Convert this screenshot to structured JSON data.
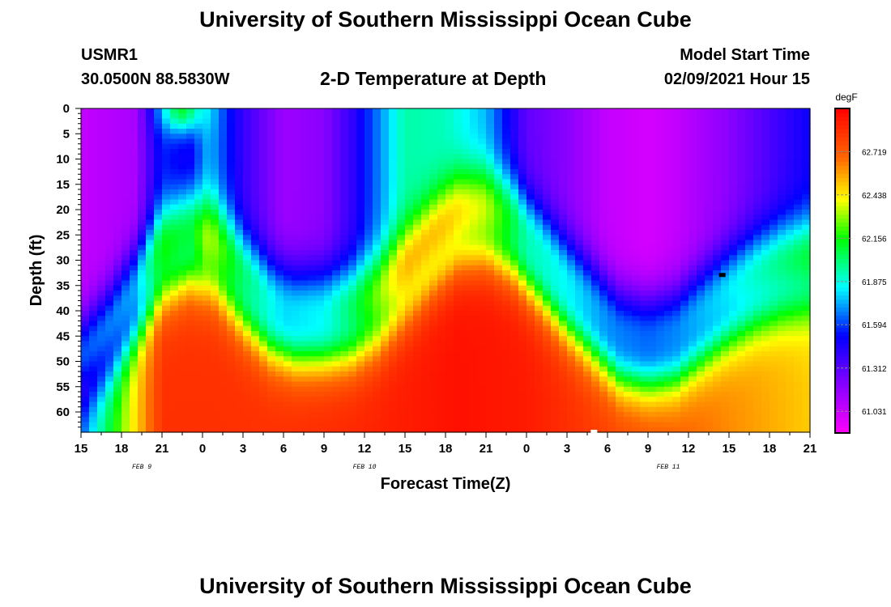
{
  "page": {
    "title_top": "University of Southern Mississippi Ocean Cube",
    "title_bottom": "University of Southern Mississippi Ocean Cube",
    "station_id": "USMR1",
    "coordinates": "30.0500N 88.5830W",
    "subtitle": "2-D Temperature at Depth",
    "model_start_label": "Model Start Time",
    "model_start_value": "02/09/2021 Hour 15"
  },
  "chart_data": {
    "type": "heatmap",
    "title": "2-D Temperature at Depth",
    "xlabel": "Forecast Time(Z)",
    "ylabel": "Depth (ft)",
    "x_ticks": [
      "15",
      "18",
      "21",
      "0",
      "3",
      "6",
      "9",
      "12",
      "15",
      "18",
      "21",
      "0",
      "3",
      "6",
      "9",
      "12",
      "15",
      "18",
      "21"
    ],
    "x_range_hours": [
      0,
      54
    ],
    "day_labels": [
      {
        "text": "FEB 9",
        "hour": 4.5
      },
      {
        "text": "FEB 10",
        "hour": 21
      },
      {
        "text": "FEB 11",
        "hour": 43.5
      }
    ],
    "y_ticks": [
      0,
      5,
      10,
      15,
      20,
      25,
      30,
      35,
      40,
      45,
      50,
      55,
      60
    ],
    "y_range": [
      0,
      64
    ],
    "y_reversed": true,
    "colorbar": {
      "unit": "degF",
      "ticks": [
        62.719,
        62.438,
        62.156,
        61.875,
        61.594,
        61.312,
        61.031
      ],
      "min": 60.89,
      "max": 63.0
    },
    "thermocline_depth_by_hour": [
      [
        0,
        58
      ],
      [
        2,
        52
      ],
      [
        4,
        44
      ],
      [
        6,
        36
      ],
      [
        8,
        32.5
      ],
      [
        10,
        35
      ],
      [
        12,
        41
      ],
      [
        14,
        46
      ],
      [
        16,
        48
      ],
      [
        18,
        48
      ],
      [
        20,
        47.5
      ],
      [
        22,
        45
      ],
      [
        24,
        40
      ],
      [
        26,
        34
      ],
      [
        28,
        29
      ],
      [
        30,
        28
      ],
      [
        32,
        30.5
      ],
      [
        34,
        36
      ],
      [
        36,
        42
      ],
      [
        38,
        47
      ],
      [
        40,
        52
      ],
      [
        42,
        53
      ],
      [
        44,
        52
      ],
      [
        46,
        48
      ],
      [
        48,
        44
      ],
      [
        50,
        41
      ],
      [
        52,
        39
      ],
      [
        54,
        38
      ]
    ],
    "upper_layer_temp_by_hour": [
      [
        0,
        61.05
      ],
      [
        4,
        61.12
      ],
      [
        6,
        61.55
      ],
      [
        8,
        61.45
      ],
      [
        9.5,
        61.75
      ],
      [
        12,
        61.4
      ],
      [
        15,
        61.15
      ],
      [
        18,
        61.2
      ],
      [
        20,
        61.4
      ],
      [
        24,
        61.95
      ],
      [
        27,
        61.92
      ],
      [
        30,
        61.75
      ],
      [
        33,
        61.3
      ],
      [
        36,
        61.2
      ],
      [
        39,
        61.05
      ],
      [
        42,
        61.0
      ],
      [
        44,
        61.05
      ],
      [
        48,
        61.2
      ],
      [
        51,
        61.35
      ],
      [
        54,
        61.5
      ]
    ],
    "bottom_layer_temp_by_hour": [
      [
        0,
        61.7
      ],
      [
        6,
        62.85
      ],
      [
        14,
        62.85
      ],
      [
        20,
        62.88
      ],
      [
        28,
        62.95
      ],
      [
        33,
        62.92
      ],
      [
        38,
        62.82
      ],
      [
        44,
        62.72
      ],
      [
        48,
        62.62
      ],
      [
        54,
        62.5
      ]
    ],
    "surface_warm_patch": {
      "center_hour": 7.5,
      "temp": 62.2,
      "depth_extent_ft": 5
    },
    "markers": [
      {
        "hour": 47.5,
        "depth": 33,
        "color": "#000000"
      },
      {
        "hour": 38,
        "depth": 64,
        "color": "#ffffff"
      }
    ]
  }
}
